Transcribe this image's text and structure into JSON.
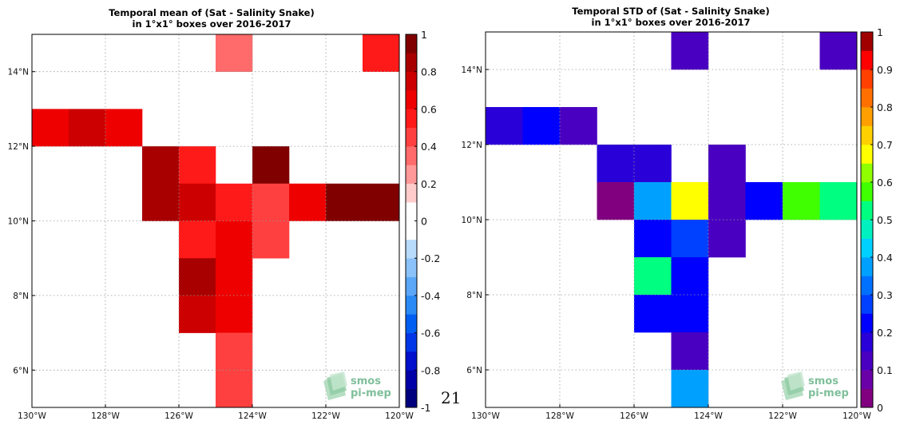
{
  "page_number": "21",
  "logo": {
    "line1": "smos",
    "line2": "pi-mep"
  },
  "chart_data": [
    {
      "type": "heatmap",
      "title": "Temporal mean of (Sat - Salinity Snake)",
      "subtitle": "in 1°x1° boxes over 2016-2017",
      "xlim": [
        -130,
        -120
      ],
      "ylim": [
        5,
        15
      ],
      "xticks": [
        {
          "value": -130,
          "label": "130°W"
        },
        {
          "value": -128,
          "label": "128°W"
        },
        {
          "value": -126,
          "label": "126°W"
        },
        {
          "value": -124,
          "label": "124°W"
        },
        {
          "value": -122,
          "label": "122°W"
        },
        {
          "value": -120,
          "label": "120°W"
        }
      ],
      "yticks": [
        {
          "value": 6,
          "label": "6°N"
        },
        {
          "value": 8,
          "label": "8°N"
        },
        {
          "value": 10,
          "label": "10°N"
        },
        {
          "value": 12,
          "label": "12°N"
        },
        {
          "value": 14,
          "label": "14°N"
        }
      ],
      "grid": true,
      "colorbar": {
        "range": [
          -1,
          1
        ],
        "ticks": [
          "-1",
          "-0.8",
          "-0.6",
          "-0.4",
          "-0.2",
          "0",
          "0.2",
          "0.4",
          "0.6",
          "0.8",
          "1"
        ],
        "tick_values": [
          -1,
          -0.8,
          -0.6,
          -0.4,
          -0.2,
          0,
          0.2,
          0.4,
          0.6,
          0.8,
          1
        ],
        "colors": [
          "#00007f",
          "#0000a8",
          "#0010cc",
          "#0036e6",
          "#005ef2",
          "#2a8af5",
          "#5aa6f7",
          "#8ac2f9",
          "#b8dafb",
          "#ffffff",
          "#ffffff",
          "#ffcccc",
          "#ff9898",
          "#ff6a6a",
          "#ff4040",
          "#ff1a1a",
          "#ee0000",
          "#cc0000",
          "#a80000",
          "#800000"
        ]
      },
      "cells": [
        {
          "lon": -125,
          "lat": 14,
          "value": 0.35
        },
        {
          "lon": -121,
          "lat": 14,
          "value": 0.55
        },
        {
          "lon": -130,
          "lat": 12,
          "value": 0.65
        },
        {
          "lon": -129,
          "lat": 12,
          "value": 0.75
        },
        {
          "lon": -128,
          "lat": 12,
          "value": 0.65
        },
        {
          "lon": -127,
          "lat": 11,
          "value": 0.85
        },
        {
          "lon": -127,
          "lat": 10,
          "value": 0.85
        },
        {
          "lon": -126,
          "lat": 11,
          "value": 0.55
        },
        {
          "lon": -124,
          "lat": 11,
          "value": 0.95
        },
        {
          "lon": -126,
          "lat": 10,
          "value": 0.75
        },
        {
          "lon": -125,
          "lat": 10,
          "value": 0.55
        },
        {
          "lon": -124,
          "lat": 10,
          "value": 0.45
        },
        {
          "lon": -123,
          "lat": 10,
          "value": 0.65
        },
        {
          "lon": -122,
          "lat": 10,
          "value": 0.95
        },
        {
          "lon": -121,
          "lat": 10,
          "value": 0.95
        },
        {
          "lon": -126,
          "lat": 9,
          "value": 0.55
        },
        {
          "lon": -125,
          "lat": 9,
          "value": 0.65
        },
        {
          "lon": -124,
          "lat": 9,
          "value": 0.45
        },
        {
          "lon": -126,
          "lat": 8,
          "value": 0.85
        },
        {
          "lon": -125,
          "lat": 8,
          "value": 0.65
        },
        {
          "lon": -126,
          "lat": 7,
          "value": 0.75
        },
        {
          "lon": -125,
          "lat": 7,
          "value": 0.6
        },
        {
          "lon": -125,
          "lat": 6,
          "value": 0.45
        },
        {
          "lon": -125,
          "lat": 5,
          "value": 0.45
        }
      ]
    },
    {
      "type": "heatmap",
      "title": "Temporal STD of (Sat - Salinity Snake)",
      "subtitle": "in 1°x1° boxes over 2016-2017",
      "xlim": [
        -130,
        -120
      ],
      "ylim": [
        5,
        15
      ],
      "xticks": [
        {
          "value": -130,
          "label": "130°W"
        },
        {
          "value": -128,
          "label": "128°W"
        },
        {
          "value": -126,
          "label": "126°W"
        },
        {
          "value": -124,
          "label": "124°W"
        },
        {
          "value": -122,
          "label": "122°W"
        },
        {
          "value": -120,
          "label": "120°W"
        }
      ],
      "yticks": [
        {
          "value": 6,
          "label": "6°N"
        },
        {
          "value": 8,
          "label": "8°N"
        },
        {
          "value": 10,
          "label": "10°N"
        },
        {
          "value": 12,
          "label": "12°N"
        },
        {
          "value": 14,
          "label": "14°N"
        }
      ],
      "grid": true,
      "colorbar": {
        "range": [
          0,
          1
        ],
        "ticks": [
          "0",
          "0.1",
          "0.2",
          "0.3",
          "0.4",
          "0.5",
          "0.6",
          "0.7",
          "0.8",
          "0.9",
          "1"
        ],
        "tick_values": [
          0,
          0.1,
          0.2,
          0.3,
          0.4,
          0.5,
          0.6,
          0.7,
          0.8,
          0.9,
          1
        ],
        "colors": [
          "#800080",
          "#6a00a8",
          "#4a00c0",
          "#2a00d8",
          "#0000ff",
          "#0040ff",
          "#0070ff",
          "#00a0ff",
          "#00d0ff",
          "#00f0c0",
          "#00ff80",
          "#40ff00",
          "#90ff00",
          "#ffff00",
          "#ffd000",
          "#ffa000",
          "#ff7000",
          "#ff4000",
          "#ff0000",
          "#a00000"
        ]
      },
      "cells": [
        {
          "lon": -125,
          "lat": 14,
          "value": 0.12
        },
        {
          "lon": -121,
          "lat": 14,
          "value": 0.12
        },
        {
          "lon": -130,
          "lat": 12,
          "value": 0.17
        },
        {
          "lon": -129,
          "lat": 12,
          "value": 0.23
        },
        {
          "lon": -128,
          "lat": 12,
          "value": 0.12
        },
        {
          "lon": -127,
          "lat": 11,
          "value": 0.17
        },
        {
          "lon": -126,
          "lat": 11,
          "value": 0.17
        },
        {
          "lon": -124,
          "lat": 11,
          "value": 0.12
        },
        {
          "lon": -127,
          "lat": 10,
          "value": 0.03
        },
        {
          "lon": -126,
          "lat": 10,
          "value": 0.37
        },
        {
          "lon": -125,
          "lat": 10,
          "value": 0.67
        },
        {
          "lon": -124,
          "lat": 10,
          "value": 0.12
        },
        {
          "lon": -123,
          "lat": 10,
          "value": 0.23
        },
        {
          "lon": -122,
          "lat": 10,
          "value": 0.57
        },
        {
          "lon": -121,
          "lat": 10,
          "value": 0.53
        },
        {
          "lon": -126,
          "lat": 9,
          "value": 0.23
        },
        {
          "lon": -125,
          "lat": 9,
          "value": 0.28
        },
        {
          "lon": -124,
          "lat": 9,
          "value": 0.12
        },
        {
          "lon": -126,
          "lat": 8,
          "value": 0.53
        },
        {
          "lon": -125,
          "lat": 8,
          "value": 0.23
        },
        {
          "lon": -126,
          "lat": 7,
          "value": 0.2
        },
        {
          "lon": -125,
          "lat": 7,
          "value": 0.23
        },
        {
          "lon": -125,
          "lat": 6,
          "value": 0.12
        },
        {
          "lon": -125,
          "lat": 5,
          "value": 0.37
        }
      ]
    }
  ]
}
